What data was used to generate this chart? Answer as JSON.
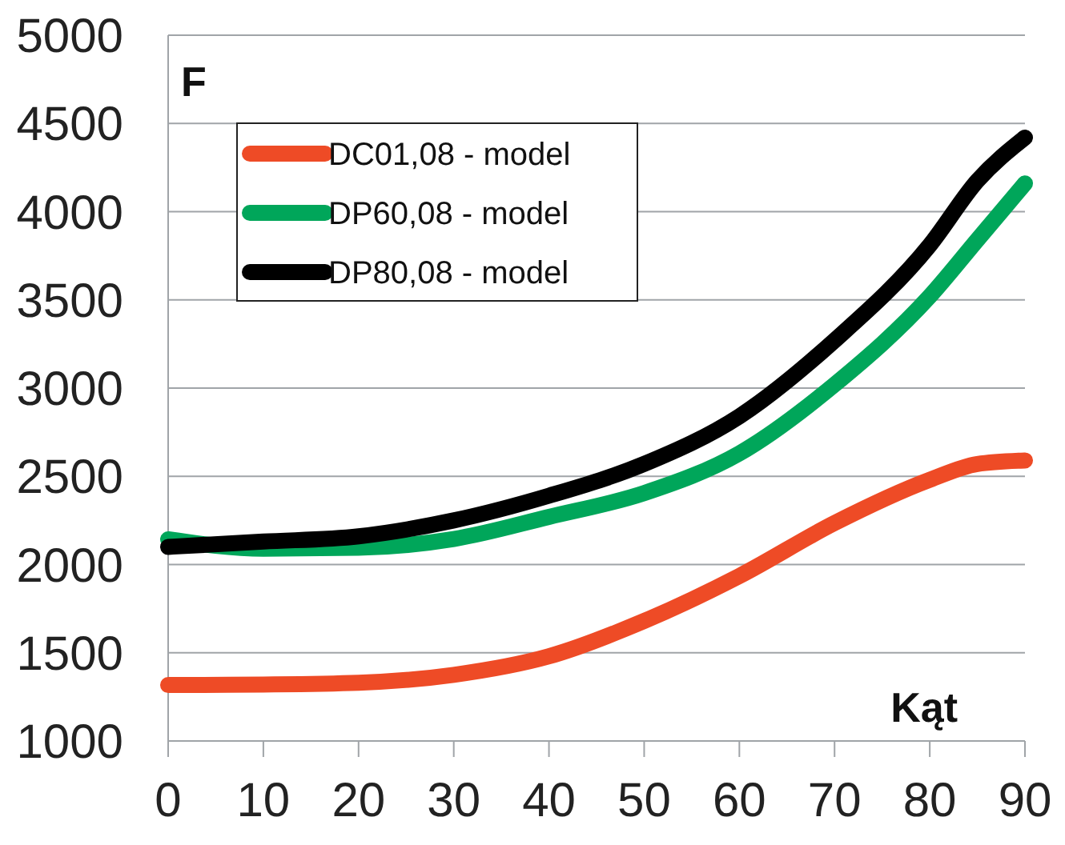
{
  "chart_data": {
    "type": "line",
    "ylabel": "F",
    "xlabel": "Kąt",
    "x": [
      0,
      10,
      20,
      30,
      40,
      50,
      60,
      70,
      80,
      85,
      90
    ],
    "series": [
      {
        "name": "DC01,08 - model",
        "color": "#ee4b26",
        "values": [
          1317,
          1320,
          1330,
          1375,
          1480,
          1680,
          1935,
          2235,
          2480,
          2570,
          2590
        ]
      },
      {
        "name": "DP60,08 - model",
        "color": "#00a65a",
        "values": [
          2143,
          2090,
          2095,
          2145,
          2270,
          2405,
          2630,
          3020,
          3520,
          3840,
          4160
        ]
      },
      {
        "name": "DP80,08 - model",
        "color": "#000000",
        "values": [
          2100,
          2130,
          2160,
          2250,
          2390,
          2570,
          2840,
          3270,
          3810,
          4175,
          4420
        ]
      }
    ],
    "xlim": [
      0,
      90
    ],
    "xticks": [
      0,
      10,
      20,
      30,
      40,
      50,
      60,
      70,
      80,
      90
    ],
    "ylim": [
      1000,
      5000
    ],
    "yticks": [
      1000,
      1500,
      2000,
      2500,
      3000,
      3500,
      4000,
      4500,
      5000
    ],
    "grid": "y",
    "legend": "top left",
    "marker": "none",
    "line_style": "solid"
  }
}
